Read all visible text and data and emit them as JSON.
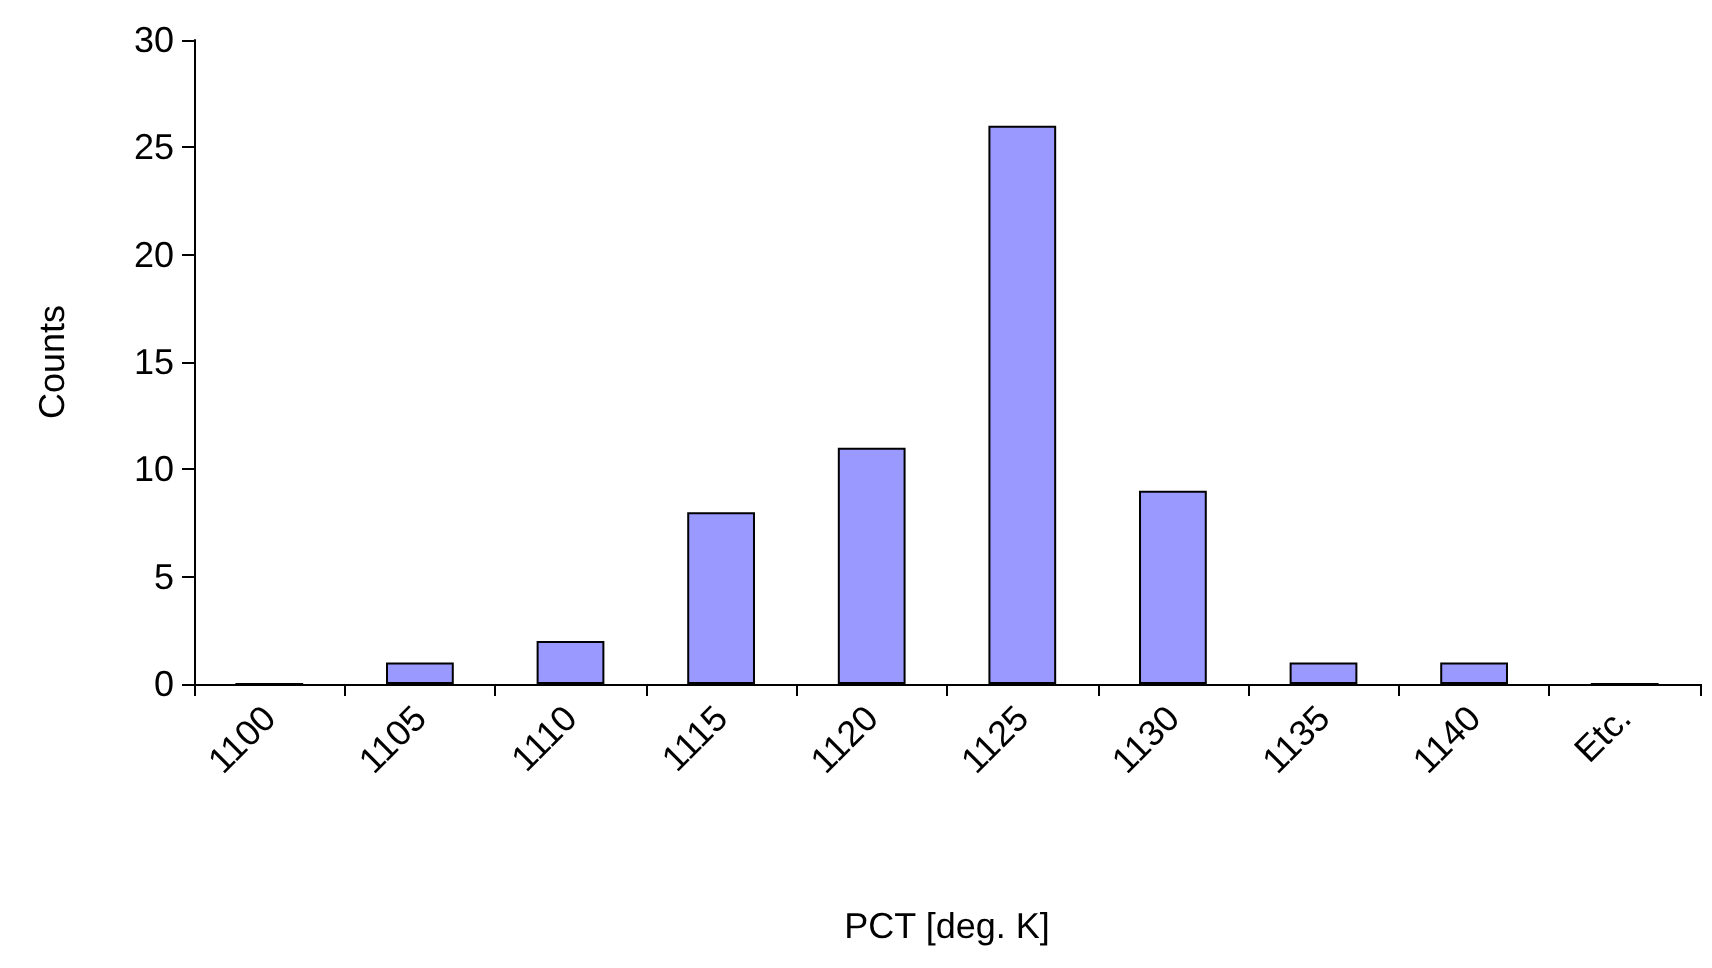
{
  "chart_data": {
    "type": "bar",
    "xlabel": "PCT [deg. K]",
    "ylabel": "Counts",
    "categories": [
      "1100",
      "1105",
      "1110",
      "1115",
      "1120",
      "1125",
      "1130",
      "1135",
      "1140",
      "Etc."
    ],
    "values": [
      0,
      1,
      2,
      8,
      11,
      26,
      9,
      1,
      1,
      0
    ],
    "color": "#9999ff",
    "ylim": [
      0,
      30
    ],
    "yticks": [
      0,
      5,
      10,
      15,
      20,
      25,
      30
    ],
    "grid": false
  }
}
